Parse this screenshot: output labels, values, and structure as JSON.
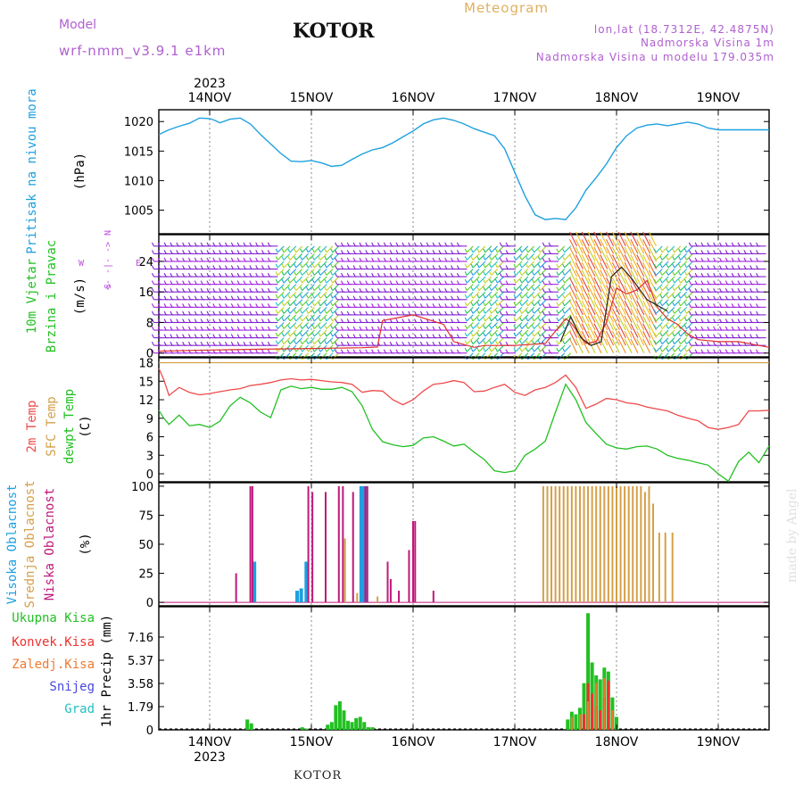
{
  "header": {
    "model_label": "Model",
    "model_name": "wrf-nmm_v3.9.1  e1km",
    "station": "KOTOR",
    "meteogram": "Meteogram",
    "lonlat": "lon,lat (18.7312E, 42.4875N)",
    "elev": "Nadmorska Visina 1m",
    "elev_model": "Nadmorska Visina u modelu 179.035m",
    "credit": "made by Angel",
    "footer": "KOTOR"
  },
  "colors": {
    "pressure": "#1ea0e0",
    "temp2m": "#ee4a4a",
    "sfc": "#d4a048",
    "dewpt": "#22c022",
    "high": "#1ea0e0",
    "mid": "#d4a048",
    "low": "#c0187a",
    "total_precip": "#22c022",
    "conv": "#ee3030",
    "frozen": "#f07a30",
    "snow": "#4848e0",
    "hail": "#22c0c0",
    "wind_label": "#22c022",
    "dir_label": "#c050e0"
  },
  "chart_data": [
    {
      "type": "line",
      "id": "pressure",
      "ylabel": [
        "Pritisak na nivou mora",
        "(hPa)"
      ],
      "time_axis": {
        "top_year": "2023",
        "bottom_year": "2023",
        "dates": [
          "14NOV",
          "15NOV",
          "16NOV",
          "17NOV",
          "18NOV",
          "19NOV"
        ],
        "x_start": -0.5,
        "x_end": 5.5
      },
      "yticks": [
        "1005",
        "1010",
        "1015",
        "1020"
      ],
      "ylim": [
        1001,
        1022
      ],
      "series": [
        {
          "x": [
            -0.5,
            -0.4,
            -0.3,
            -0.2,
            -0.1,
            0.0,
            0.05,
            0.1,
            0.2,
            0.3,
            0.4,
            0.5,
            0.6,
            0.7,
            0.8,
            0.9,
            1.0,
            1.1,
            1.2,
            1.3,
            1.4,
            1.5,
            1.6,
            1.7,
            1.8,
            1.9,
            2.0,
            2.1,
            2.2,
            2.3,
            2.4,
            2.5,
            2.6,
            2.7,
            2.8,
            2.9,
            3.0,
            3.1,
            3.2,
            3.3,
            3.4,
            3.5,
            3.6,
            3.7,
            3.8,
            3.9,
            4.0,
            4.1,
            4.2,
            4.3,
            4.4,
            4.5,
            4.6,
            4.7,
            4.8,
            4.9,
            5.0,
            5.1,
            5.2,
            5.3,
            5.4,
            5.5
          ],
          "values": [
            1017.8,
            1018.6,
            1019.2,
            1019.7,
            1020.6,
            1020.5,
            1020.2,
            1019.8,
            1020.4,
            1020.6,
            1019.6,
            1017.8,
            1016.2,
            1014.6,
            1013.3,
            1013.2,
            1013.4,
            1013.0,
            1012.4,
            1012.6,
            1013.6,
            1014.5,
            1015.2,
            1015.6,
            1016.4,
            1017.4,
            1018.4,
            1019.6,
            1020.3,
            1020.6,
            1020.2,
            1019.6,
            1018.8,
            1018.2,
            1017.6,
            1015.4,
            1011.4,
            1007.4,
            1004.2,
            1003.4,
            1003.6,
            1003.4,
            1005.4,
            1008.4,
            1010.5,
            1012.8,
            1015.6,
            1017.6,
            1018.9,
            1019.4,
            1019.6,
            1019.3,
            1019.6,
            1019.9,
            1019.6,
            1018.9,
            1018.6,
            1018.6,
            1018.6,
            1018.6,
            1018.6,
            1018.6
          ]
        }
      ]
    },
    {
      "type": "line",
      "id": "wind",
      "ylabel": [
        "10m Vjetar",
        "Brzina i Pravac",
        "(m/s)"
      ],
      "direction_legend": [
        "W",
        "<- -|- ->",
        "N",
        "S",
        "E"
      ],
      "yticks": [
        "0",
        "8",
        "16",
        "24"
      ],
      "ylim": [
        -1,
        31
      ],
      "barb_rows": [
        0,
        2,
        4,
        6,
        8,
        10,
        12,
        14,
        16,
        18,
        20,
        22,
        24,
        26,
        28,
        30
      ],
      "band_colored_x": [
        [
          0.7,
          1.3
        ],
        [
          2.55,
          2.95
        ],
        [
          3.05,
          3.35
        ],
        [
          3.45,
          4.75
        ]
      ],
      "band_warm_x": [
        [
          3.6,
          4.4
        ]
      ],
      "series": [
        {
          "name": "speed",
          "color": "#e03030",
          "x": [
            -0.5,
            0.0,
            0.5,
            1.0,
            1.5,
            1.65,
            1.7,
            2.0,
            2.3,
            2.4,
            2.6,
            2.7,
            3.0,
            3.3,
            3.5,
            3.55,
            3.7,
            3.8,
            3.9,
            4.0,
            4.1,
            4.2,
            4.3,
            4.4,
            4.5,
            4.6,
            4.7,
            4.8,
            5.0,
            5.2,
            5.4,
            5.5
          ],
          "values": [
            0.5,
            0.8,
            1.0,
            1.2,
            1.4,
            1.6,
            8.5,
            10.0,
            7.5,
            3.0,
            1.5,
            2.0,
            2.0,
            2.5,
            9.0,
            8.0,
            2.5,
            3.0,
            8.0,
            17.0,
            15.5,
            16.5,
            19.0,
            12.0,
            9.0,
            7.5,
            5.0,
            3.5,
            3.0,
            3.0,
            2.0,
            1.5
          ]
        },
        {
          "name": "gust",
          "color": "#222222",
          "x": [
            3.45,
            3.55,
            3.65,
            3.75,
            3.85,
            3.95,
            4.05,
            4.15,
            4.3,
            4.5
          ],
          "values": [
            3.0,
            9.5,
            4.0,
            2.0,
            3.0,
            20.0,
            22.5,
            19.5,
            14.0,
            11.0
          ]
        }
      ]
    },
    {
      "type": "line",
      "id": "temperature",
      "ylabel": [
        "2m Temp",
        "SFC Temp",
        "dewpt Temp",
        "(C)"
      ],
      "yticks": [
        "0",
        "3",
        "6",
        "9",
        "12",
        "15",
        "18"
      ],
      "ylim": [
        -1.3,
        18.8
      ],
      "series": [
        {
          "name": "2m Temp",
          "color": "#ee4a4a",
          "x": [
            -0.5,
            -0.45,
            -0.4,
            -0.3,
            -0.2,
            -0.1,
            0.0,
            0.1,
            0.2,
            0.3,
            0.4,
            0.5,
            0.6,
            0.7,
            0.8,
            0.9,
            1.0,
            1.1,
            1.2,
            1.3,
            1.4,
            1.5,
            1.6,
            1.7,
            1.8,
            1.9,
            2.0,
            2.1,
            2.2,
            2.3,
            2.4,
            2.5,
            2.6,
            2.7,
            2.8,
            2.9,
            3.0,
            3.1,
            3.2,
            3.3,
            3.4,
            3.5,
            3.6,
            3.7,
            3.8,
            3.9,
            4.0,
            4.1,
            4.2,
            4.3,
            4.4,
            4.5,
            4.6,
            4.7,
            4.8,
            4.9,
            5.0,
            5.1,
            5.2,
            5.3,
            5.4,
            5.5
          ],
          "values": [
            17.1,
            15.2,
            12.7,
            14.0,
            13.2,
            12.8,
            13.0,
            13.3,
            13.6,
            13.8,
            14.3,
            14.5,
            14.8,
            15.2,
            15.4,
            15.2,
            15.3,
            15.1,
            14.9,
            14.8,
            14.5,
            13.2,
            13.5,
            13.4,
            12.0,
            11.2,
            12.0,
            13.4,
            14.5,
            14.7,
            15.1,
            14.8,
            13.3,
            13.4,
            14.0,
            14.5,
            13.2,
            12.7,
            13.6,
            14.0,
            14.8,
            16.0,
            14.0,
            10.6,
            11.3,
            12.2,
            12.0,
            11.5,
            11.3,
            10.8,
            10.5,
            10.2,
            9.5,
            9.0,
            8.6,
            7.5,
            7.2,
            7.5,
            8.0,
            10.2,
            10.2,
            10.3
          ]
        },
        {
          "name": "SFC Temp",
          "color": "#d4a048",
          "x": [
            -0.5,
            5.5
          ],
          "values": [
            18.0,
            18.0
          ]
        },
        {
          "name": "dewpt Temp",
          "color": "#22c022",
          "x": [
            -0.5,
            -0.45,
            -0.4,
            -0.3,
            -0.2,
            -0.1,
            0.0,
            0.1,
            0.2,
            0.3,
            0.4,
            0.5,
            0.6,
            0.7,
            0.8,
            0.9,
            1.0,
            1.1,
            1.2,
            1.3,
            1.4,
            1.5,
            1.6,
            1.7,
            1.8,
            1.9,
            2.0,
            2.1,
            2.2,
            2.3,
            2.4,
            2.5,
            2.6,
            2.7,
            2.8,
            2.9,
            3.0,
            3.1,
            3.2,
            3.3,
            3.4,
            3.5,
            3.6,
            3.7,
            3.8,
            3.9,
            4.0,
            4.1,
            4.2,
            4.3,
            4.4,
            4.5,
            4.6,
            4.7,
            4.8,
            4.9,
            5.0,
            5.1,
            5.2,
            5.3,
            5.4,
            5.5
          ],
          "values": [
            10.3,
            9.0,
            8.0,
            9.5,
            7.8,
            8.0,
            7.5,
            8.5,
            11.0,
            12.4,
            11.5,
            10.0,
            9.1,
            13.6,
            14.2,
            13.8,
            14.0,
            13.7,
            13.7,
            14.0,
            13.3,
            11.0,
            7.2,
            5.2,
            4.7,
            4.4,
            4.6,
            5.8,
            6.0,
            5.3,
            4.5,
            4.8,
            3.5,
            2.3,
            0.5,
            0.2,
            0.5,
            3.0,
            4.0,
            5.3,
            10.0,
            14.5,
            12.0,
            8.3,
            6.5,
            4.8,
            4.2,
            4.0,
            4.4,
            4.5,
            4.0,
            3.0,
            2.5,
            2.2,
            1.8,
            1.4,
            0.0,
            -1.2,
            2.0,
            3.5,
            1.8,
            4.5
          ]
        }
      ]
    },
    {
      "type": "bar",
      "id": "clouds",
      "ylabel": [
        "Visoka Oblacnost",
        "Srednja Oblacnost",
        "Niska Oblacnost",
        "(%)"
      ],
      "yticks": [
        "0",
        "25",
        "50",
        "75",
        "100"
      ],
      "ylim": [
        -3,
        103
      ],
      "series": [
        {
          "name": "Visoka Oblacnost",
          "color": "#1ea0e0",
          "x": [
            0.44,
            0.86,
            0.9,
            0.95,
            1.49,
            1.51,
            1.54
          ],
          "values": [
            35,
            10,
            12,
            35,
            100,
            100,
            100
          ]
        },
        {
          "name": "Srednja Oblacnost",
          "color": "#d4a048",
          "x": [
            1.33,
            1.45,
            1.65,
            3.28,
            3.32,
            3.36,
            3.4,
            3.44,
            3.48,
            3.52,
            3.56,
            3.6,
            3.64,
            3.68,
            3.72,
            3.76,
            3.8,
            3.84,
            3.88,
            3.92,
            3.96,
            4.0,
            4.04,
            4.08,
            4.12,
            4.16,
            4.2,
            4.24,
            4.28,
            4.32,
            4.36,
            4.42,
            4.48,
            4.55
          ],
          "values": [
            55,
            8,
            5,
            100,
            100,
            100,
            100,
            100,
            100,
            100,
            100,
            100,
            100,
            100,
            100,
            100,
            100,
            100,
            100,
            100,
            100,
            100,
            100,
            100,
            100,
            100,
            100,
            100,
            95,
            100,
            85,
            60,
            60,
            60
          ]
        },
        {
          "name": "Niska Oblacnost",
          "color": "#c0187a",
          "x": [
            0.26,
            0.4,
            0.42,
            0.97,
            1.01,
            1.14,
            1.27,
            1.31,
            1.41,
            1.53,
            1.55,
            1.75,
            1.78,
            1.86,
            1.96,
            2.0,
            2.02,
            2.2
          ],
          "values": [
            25,
            100,
            100,
            100,
            95,
            95,
            100,
            100,
            95,
            100,
            100,
            35,
            20,
            10,
            45,
            70,
            70,
            10
          ]
        }
      ]
    },
    {
      "type": "bar",
      "id": "precip",
      "ylabel": [
        "1hr Precip (mm)"
      ],
      "legend": [
        "Ukupna Kisa",
        "Konvek.Kisa",
        "Zaledj.Kisa",
        "Snijeg",
        "Grad"
      ],
      "yticks": [
        "0",
        "1.79",
        "3.58",
        "5.37",
        "7.16"
      ],
      "ylim": [
        0,
        9.5
      ],
      "series": [
        {
          "name": "Ukupna Kisa",
          "color": "#22c022",
          "x": [
            0.37,
            0.41,
            0.91,
            0.95,
            1.16,
            1.2,
            1.24,
            1.28,
            1.32,
            1.36,
            1.4,
            1.44,
            1.48,
            1.52,
            1.56,
            1.6,
            3.52,
            3.56,
            3.6,
            3.64,
            3.68,
            3.72,
            3.76,
            3.8,
            3.84,
            3.88,
            3.92,
            3.96,
            4.0
          ],
          "values": [
            0.8,
            0.5,
            0.2,
            0.1,
            0.4,
            0.6,
            1.9,
            2.2,
            1.5,
            0.7,
            0.6,
            0.9,
            1.0,
            0.6,
            0.2,
            0.2,
            0.8,
            1.4,
            1.2,
            1.7,
            3.6,
            9.0,
            5.2,
            4.2,
            3.9,
            4.8,
            4.5,
            2.5,
            1.0
          ]
        },
        {
          "name": "Konvek.Kisa",
          "color": "#ee3030",
          "x": [
            3.68,
            3.72,
            3.76,
            3.8,
            3.84,
            3.88,
            3.92
          ],
          "values": [
            1.2,
            3.6,
            2.8,
            1.8,
            1.5,
            2.5,
            3.8
          ]
        },
        {
          "name": "Zaledj.Kisa",
          "color": "#f07a30",
          "x": [
            3.56,
            3.64,
            3.72,
            3.8,
            3.88,
            3.96
          ],
          "values": [
            1.0,
            1.2,
            2.2,
            3.6,
            4.0,
            1.5
          ]
        }
      ]
    }
  ]
}
